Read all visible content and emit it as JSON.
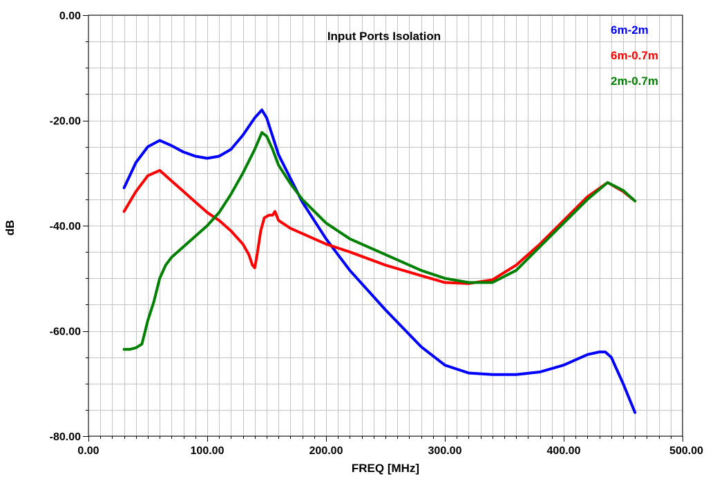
{
  "chart_data": {
    "type": "line",
    "title": "Input Ports Isolation",
    "xlabel": "FREQ [MHz]",
    "ylabel": "dB",
    "xlim": [
      0,
      500
    ],
    "ylim": [
      -80,
      0
    ],
    "x_major_ticks": [
      0,
      100,
      200,
      300,
      400,
      500
    ],
    "x_tick_labels": [
      "0.00",
      "100.00",
      "200.00",
      "300.00",
      "400.00",
      "500.00"
    ],
    "y_major_ticks": [
      0,
      -20,
      -40,
      -60,
      -80
    ],
    "y_tick_labels": [
      "0.00",
      "-20.00",
      "-40.00",
      "-60.00",
      "-80.00"
    ],
    "x_grid_step": 10,
    "y_grid_step": 5,
    "grid": true,
    "legend_position": "top-right",
    "series": [
      {
        "name": "6m-2m",
        "color": "#0000ff",
        "x": [
          30,
          40,
          50,
          60,
          70,
          80,
          90,
          100,
          110,
          120,
          130,
          140,
          146,
          150,
          155,
          160,
          170,
          180,
          200,
          220,
          250,
          280,
          300,
          320,
          340,
          360,
          380,
          400,
          420,
          430,
          435,
          440,
          450,
          460
        ],
        "y": [
          -32.8,
          -28.0,
          -25.0,
          -23.8,
          -24.8,
          -26.0,
          -26.8,
          -27.2,
          -26.8,
          -25.5,
          -22.8,
          -19.5,
          -18.0,
          -19.5,
          -23.0,
          -26.5,
          -31.0,
          -35.5,
          -42.5,
          -48.5,
          -56.0,
          -63.0,
          -66.5,
          -68.0,
          -68.3,
          -68.3,
          -67.8,
          -66.5,
          -64.5,
          -64.0,
          -64.0,
          -65.0,
          -70.0,
          -75.5
        ]
      },
      {
        "name": "6m-0.7m",
        "color": "#ff0000",
        "x": [
          30,
          40,
          50,
          60,
          70,
          80,
          90,
          100,
          110,
          120,
          130,
          135,
          138,
          140,
          142,
          145,
          148,
          152,
          155,
          157,
          160,
          170,
          180,
          200,
          220,
          250,
          280,
          300,
          320,
          340,
          360,
          380,
          400,
          420,
          437,
          450,
          460
        ],
        "y": [
          -37.3,
          -33.5,
          -30.5,
          -29.5,
          -31.5,
          -33.5,
          -35.5,
          -37.5,
          -39.0,
          -41.0,
          -43.5,
          -45.5,
          -47.5,
          -48.0,
          -45.5,
          -41.0,
          -38.5,
          -38.0,
          -38.0,
          -37.3,
          -39.0,
          -40.5,
          -41.5,
          -43.5,
          -45.0,
          -47.5,
          -49.5,
          -50.8,
          -51.0,
          -50.3,
          -47.5,
          -43.5,
          -39.0,
          -34.5,
          -31.8,
          -33.5,
          -35.3
        ]
      },
      {
        "name": "2m-0.7m",
        "color": "#008000",
        "x": [
          30,
          35,
          40,
          45,
          50,
          55,
          60,
          65,
          70,
          80,
          90,
          100,
          110,
          120,
          130,
          140,
          146,
          150,
          155,
          160,
          170,
          180,
          200,
          220,
          250,
          280,
          300,
          320,
          340,
          360,
          380,
          400,
          420,
          437,
          450,
          460
        ],
        "y": [
          -63.5,
          -63.5,
          -63.2,
          -62.5,
          -58.0,
          -54.5,
          -50.0,
          -47.5,
          -46.0,
          -44.0,
          -42.0,
          -40.0,
          -37.5,
          -34.0,
          -30.0,
          -25.5,
          -22.3,
          -23.0,
          -25.5,
          -28.5,
          -32.0,
          -35.0,
          -39.5,
          -42.5,
          -45.5,
          -48.5,
          -50.0,
          -50.8,
          -50.8,
          -48.5,
          -44.0,
          -39.5,
          -35.0,
          -31.8,
          -33.3,
          -35.3
        ]
      }
    ]
  }
}
